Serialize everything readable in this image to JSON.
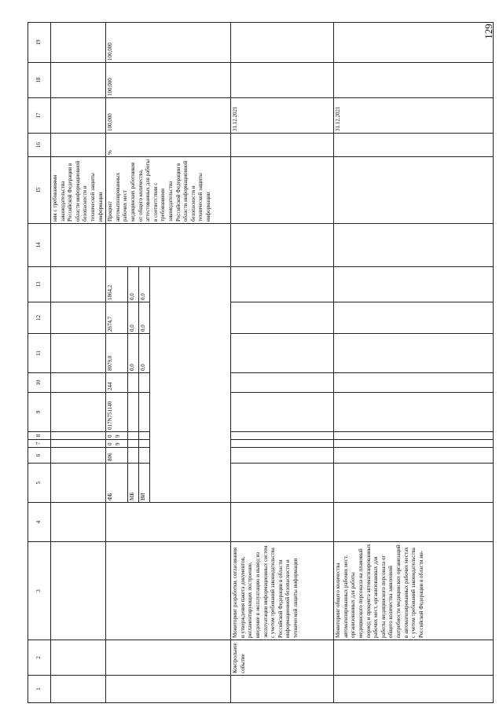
{
  "page_number": "129",
  "table": {
    "headers": [
      "1",
      "2",
      "3",
      "4",
      "5",
      "6",
      "7",
      "8",
      "9",
      "10",
      "11",
      "12",
      "13",
      "14",
      "15",
      "16",
      "17",
      "18",
      "19"
    ],
    "row1": {
      "col15": "ния с требованиями законодательства Российской Федерации в области информационной безопасности и технической защиты информации"
    },
    "row2": {
      "sources": [
        "ФБ",
        "МБ",
        "ВИ"
      ],
      "col6": "806",
      "col7": "09",
      "col8": "09",
      "col9": "017N751140",
      "col10": "244",
      "col11": [
        "8079,0",
        "0,0",
        "0,0"
      ],
      "col12": [
        "2674,7",
        "0,0",
        "0,0"
      ],
      "col13": [
        "1864,2",
        "0,0",
        "0,0"
      ],
      "col15": "Процент автоматизированных рабочих мест медицинских работников от общего количества, аттестованных для работы в соответствии с требованиями законодательства Российской Федерации в области информационной безопасности и технической защиты информации",
      "col16": "%",
      "col17": "100,000",
      "col18": "100,000",
      "col19": "100,000"
    },
    "row3": {
      "col2": "Контрольное событие",
      "col3": "Мониторинг разработки, согласования и утверждения пакета документов, регламентирующих построение, введение в эксплуатацию и вывод из эксплуатации информационных систем с учетом требований законодательства Российской Федерации в области информационной безопасности и технической защиты информации",
      "col17": "31.12.2021"
    },
    "row4": {
      "col3": "Мониторинг общего количества автоматизированных рабочих мест, организованных для работы медицинского персонала на плановый период и процента автоматизированных рабочих мест, организованных для работы медицинского персонала от общего количества заявленной потребности медицинских организаций в автоматизированных рабочих местах с учетом требований законодательства Российской Федерации в области ин-",
      "col17": "31.12.2021"
    }
  }
}
